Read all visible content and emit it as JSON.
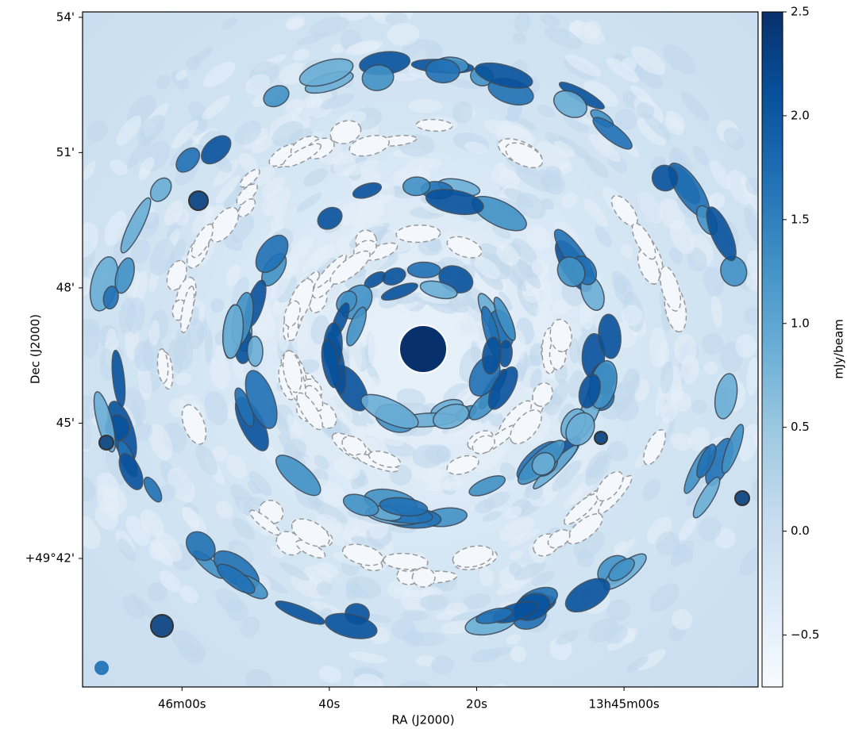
{
  "chart_data": {
    "type": "image",
    "xlabel": "RA (J2000)",
    "ylabel": "Dec (J2000)",
    "xlim": [
      49573.5,
      49481.8
    ],
    "xticks": [
      {
        "value": 49560,
        "label": "46m00s"
      },
      {
        "value": 49540,
        "label": "40s"
      },
      {
        "value": 49520,
        "label": "20s"
      },
      {
        "value": 49500,
        "label": "13h45m00s"
      }
    ],
    "ylim": [
      39.15,
      54.12
    ],
    "yticks": [
      {
        "value": 54,
        "label": "54'"
      },
      {
        "value": 51,
        "label": "51'"
      },
      {
        "value": 48,
        "label": "48'"
      },
      {
        "value": 45,
        "label": "45'"
      },
      {
        "value": 42,
        "label": "+49°42'"
      }
    ],
    "colorbar": {
      "label": "mJy/beam",
      "cmap": "Blues",
      "clim": [
        -0.75,
        2.5
      ],
      "ticks": [
        2.5,
        {
          "value": 2.0,
          "label": "2.0"
        },
        1.5,
        {
          "value": 1.0,
          "label": "1.0"
        },
        0.5,
        {
          "value": 0.0,
          "label": "0.0"
        },
        {
          "value": -0.5,
          "label": "−0.5"
        }
      ]
    }
  }
}
